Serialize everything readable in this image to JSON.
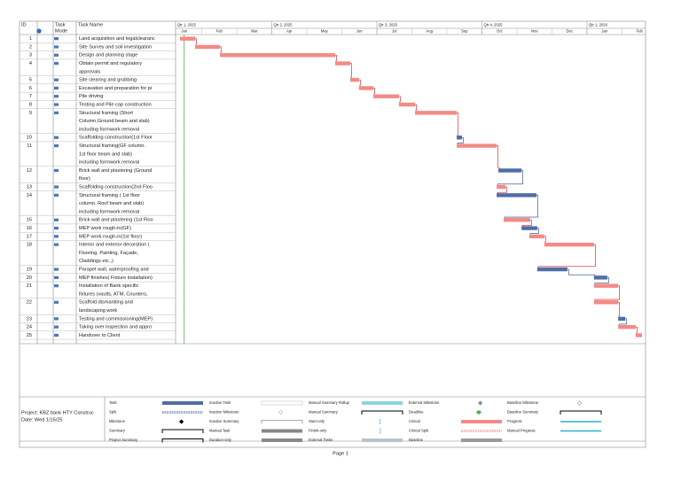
{
  "header": {
    "id": "ID",
    "task_mode": [
      "Task",
      "Mode"
    ],
    "task_name": "Task Name"
  },
  "timeline": {
    "quarters": [
      "Qtr 1, 2025",
      "Qtr 2, 2025",
      "Qtr 3, 2025",
      "Qtr 4, 2025",
      "Qtr 1, 2026"
    ],
    "months": [
      "Jan",
      "Feb",
      "Mar",
      "Apr",
      "May",
      "Jun",
      "Jul",
      "Aug",
      "Sep",
      "Oct",
      "Nov",
      "Dec",
      "Jan",
      "Feb"
    ],
    "critical_color": "#f28b86",
    "task_color": "#4f6ea6"
  },
  "tasks": [
    {
      "id": 1,
      "name": [
        "Land acquisition and legalclearanc"
      ],
      "start": 0.38,
      "end": 0.81,
      "critical": true
    },
    {
      "id": 2,
      "name": [
        "Site Survey and soil investigation"
      ],
      "start": 0.81,
      "end": 1.52,
      "critical": true
    },
    {
      "id": 3,
      "name": [
        "Design and planning stage"
      ],
      "start": 1.52,
      "end": 4.81,
      "critical": true
    },
    {
      "id": 4,
      "name": [
        "Obtain permit and regulatory",
        "approvals"
      ],
      "start": 4.81,
      "end": 5.24,
      "critical": true
    },
    {
      "id": 5,
      "name": [
        "Site clearing and grubbing"
      ],
      "start": 5.24,
      "end": 5.49,
      "critical": true
    },
    {
      "id": 6,
      "name": [
        "Excavation and preparation for pi"
      ],
      "start": 5.49,
      "end": 5.9,
      "critical": true
    },
    {
      "id": 7,
      "name": [
        "Pile driving"
      ],
      "start": 5.9,
      "end": 6.63,
      "critical": true
    },
    {
      "id": 8,
      "name": [
        "Testing and Pile cap construction"
      ],
      "start": 6.63,
      "end": 7.09,
      "critical": true
    },
    {
      "id": 9,
      "name": [
        "Structural framing (Short",
        "Column,Ground beam and slab)",
        "including formwork removal"
      ],
      "start": 7.09,
      "end": 8.28,
      "critical": true
    },
    {
      "id": 10,
      "name": [
        "Scaffolding construction(1st Floor"
      ],
      "start": 8.28,
      "end": 8.43,
      "critical": false
    },
    {
      "id": 11,
      "name": [
        "Structural framing(GF column.",
        "1st floor beam and slab)",
        "including formwork removal"
      ],
      "start": 8.28,
      "end": 9.42,
      "critical": true
    },
    {
      "id": 12,
      "name": [
        "Brick wall and plastering (Ground",
        "floor)"
      ],
      "start": 9.47,
      "end": 10.13,
      "critical": false
    },
    {
      "id": 13,
      "name": [
        "Scaffolding construction(2nd Floo"
      ],
      "start": 9.42,
      "end": 9.67,
      "critical": true
    },
    {
      "id": 14,
      "name": [
        "Structural framing ( 1st floor",
        "column. Roof beam and slab)",
        "including formwork removal"
      ],
      "start": 9.42,
      "end": 10.56,
      "critical": false
    },
    {
      "id": 15,
      "name": [
        "Brick wall and plastering (1st Floo"
      ],
      "start": 9.62,
      "end": 10.38,
      "critical": true
    },
    {
      "id": 16,
      "name": [
        "MEP work rough-in(GF)"
      ],
      "start": 10.13,
      "end": 10.58,
      "critical": false
    },
    {
      "id": 17,
      "name": [
        "MEP work rough-in(1st floor)"
      ],
      "start": 10.35,
      "end": 10.78,
      "critical": true
    },
    {
      "id": 18,
      "name": [
        "Interior and exterior decoration (",
        "Flooring, Painting, Façade,",
        "Claddings etc.,)"
      ],
      "start": 10.78,
      "end": 12.2,
      "critical": true
    },
    {
      "id": 19,
      "name": [
        "Parapet wall, waterproofing and"
      ],
      "start": 10.58,
      "end": 11.44,
      "critical": false
    },
    {
      "id": 20,
      "name": [
        "MEP finishes( Fixture installation)"
      ],
      "start": 12.2,
      "end": 12.58,
      "critical": false
    },
    {
      "id": 21,
      "name": [
        "Installation of Bank specific",
        "fixtures (vaults, ATM, Counters,"
      ],
      "start": 12.2,
      "end": 12.89,
      "critical": true
    },
    {
      "id": 22,
      "name": [
        "Scaffold dismantling and",
        "landscaping work"
      ],
      "start": 12.2,
      "end": 12.89,
      "critical": true
    },
    {
      "id": 23,
      "name": [
        "Testing and commissioning(MEP)"
      ],
      "start": 12.89,
      "end": 13.09,
      "critical": false
    },
    {
      "id": 24,
      "name": [
        "Taking over inspection and appro"
      ],
      "start": 12.89,
      "end": 13.39,
      "critical": true
    },
    {
      "id": 25,
      "name": [
        "Handover to Client"
      ],
      "start": 13.39,
      "end": 13.57,
      "critical": true
    }
  ],
  "legend": {
    "project": "Project: KBZ bank HTY Construc",
    "date": "Date: Wed 1/15/25",
    "items": [
      "Task",
      "Split",
      "Milestone",
      "Summary",
      "Project Summary",
      "Inactive Task",
      "Inactive Milestone",
      "Inactive Summary",
      "Manual Task",
      "Duration-only",
      "Manual Summary Rollup",
      "Manual Summary",
      "Start-only",
      "Finish-only",
      "External Tasks",
      "External Milestone",
      "Deadline",
      "Critical",
      "Critical Split",
      "Baseline",
      "Baseline Milestone",
      "Baseline Summary",
      "Progress",
      "Manual Progress"
    ]
  },
  "footer": "Page 1"
}
